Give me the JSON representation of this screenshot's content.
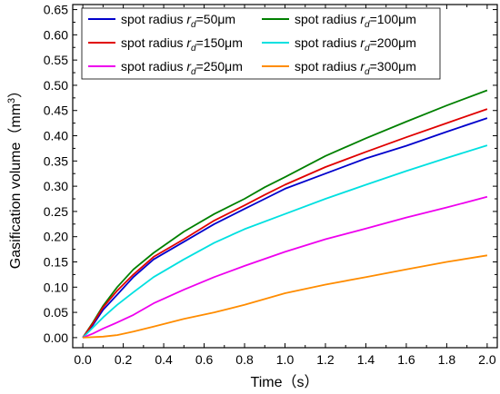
{
  "chart_data": {
    "type": "line",
    "xlabel": "Time（s）",
    "ylabel": "Gasification volume（mm",
    "ylabel_sup": "3",
    "ylabel_close": "）",
    "xlim": [
      -0.05,
      2.05
    ],
    "ylim": [
      -0.02,
      0.66
    ],
    "xticks": [
      "0.0",
      "0.2",
      "0.4",
      "0.6",
      "0.8",
      "1.0",
      "1.2",
      "1.4",
      "1.6",
      "1.8",
      "2.0"
    ],
    "yticks": [
      "0.00",
      "0.05",
      "0.10",
      "0.15",
      "0.20",
      "0.25",
      "0.30",
      "0.35",
      "0.40",
      "0.45",
      "0.50",
      "0.55",
      "0.60",
      "0.65"
    ],
    "legend_placement": "top-left",
    "series": [
      {
        "name": "spot radius ",
        "sym": "r",
        "sub": "d",
        "value_label": "=50μm",
        "color": "#0000cc",
        "points": [
          [
            0,
            0
          ],
          [
            0.05,
            0.025
          ],
          [
            0.1,
            0.055
          ],
          [
            0.17,
            0.085
          ],
          [
            0.25,
            0.12
          ],
          [
            0.35,
            0.155
          ],
          [
            0.5,
            0.19
          ],
          [
            0.65,
            0.225
          ],
          [
            0.8,
            0.255
          ],
          [
            0.9,
            0.275
          ],
          [
            1.0,
            0.295
          ],
          [
            1.2,
            0.325
          ],
          [
            1.4,
            0.355
          ],
          [
            1.6,
            0.38
          ],
          [
            1.8,
            0.408
          ],
          [
            2.0,
            0.435
          ]
        ]
      },
      {
        "name": "spot radius ",
        "sym": "r",
        "sub": "d",
        "value_label": "=100μm",
        "color": "#008000",
        "points": [
          [
            0,
            0
          ],
          [
            0.05,
            0.03
          ],
          [
            0.1,
            0.063
          ],
          [
            0.17,
            0.1
          ],
          [
            0.25,
            0.135
          ],
          [
            0.35,
            0.168
          ],
          [
            0.5,
            0.21
          ],
          [
            0.65,
            0.245
          ],
          [
            0.8,
            0.275
          ],
          [
            0.9,
            0.298
          ],
          [
            1.0,
            0.318
          ],
          [
            1.2,
            0.36
          ],
          [
            1.4,
            0.395
          ],
          [
            1.6,
            0.428
          ],
          [
            1.8,
            0.46
          ],
          [
            2.0,
            0.49
          ]
        ]
      },
      {
        "name": "spot radius ",
        "sym": "r",
        "sub": "d",
        "value_label": "=150μm",
        "color": "#e00000",
        "points": [
          [
            0,
            0
          ],
          [
            0.05,
            0.028
          ],
          [
            0.1,
            0.06
          ],
          [
            0.17,
            0.093
          ],
          [
            0.25,
            0.125
          ],
          [
            0.35,
            0.16
          ],
          [
            0.5,
            0.195
          ],
          [
            0.65,
            0.232
          ],
          [
            0.8,
            0.262
          ],
          [
            0.9,
            0.283
          ],
          [
            1.0,
            0.303
          ],
          [
            1.2,
            0.338
          ],
          [
            1.4,
            0.368
          ],
          [
            1.6,
            0.397
          ],
          [
            1.8,
            0.425
          ],
          [
            2.0,
            0.453
          ]
        ]
      },
      {
        "name": "spot radius ",
        "sym": "r",
        "sub": "d",
        "value_label": "=200μm",
        "color": "#00e0e0",
        "points": [
          [
            0,
            0
          ],
          [
            0.05,
            0.02
          ],
          [
            0.1,
            0.04
          ],
          [
            0.17,
            0.065
          ],
          [
            0.25,
            0.09
          ],
          [
            0.35,
            0.12
          ],
          [
            0.5,
            0.155
          ],
          [
            0.65,
            0.188
          ],
          [
            0.8,
            0.215
          ],
          [
            1.0,
            0.245
          ],
          [
            1.2,
            0.275
          ],
          [
            1.4,
            0.303
          ],
          [
            1.6,
            0.33
          ],
          [
            1.8,
            0.356
          ],
          [
            2.0,
            0.381
          ]
        ]
      },
      {
        "name": "spot radius ",
        "sym": "r",
        "sub": "d",
        "value_label": "=250μm",
        "color": "#ee00ee",
        "points": [
          [
            0,
            0
          ],
          [
            0.05,
            0.008
          ],
          [
            0.1,
            0.018
          ],
          [
            0.17,
            0.03
          ],
          [
            0.25,
            0.045
          ],
          [
            0.35,
            0.068
          ],
          [
            0.5,
            0.095
          ],
          [
            0.65,
            0.12
          ],
          [
            0.8,
            0.142
          ],
          [
            1.0,
            0.17
          ],
          [
            1.2,
            0.195
          ],
          [
            1.4,
            0.216
          ],
          [
            1.6,
            0.238
          ],
          [
            1.8,
            0.258
          ],
          [
            2.0,
            0.279
          ]
        ]
      },
      {
        "name": "spot radius ",
        "sym": "r",
        "sub": "d",
        "value_label": "=300μm",
        "color": "#ff8c00",
        "points": [
          [
            0,
            0
          ],
          [
            0.1,
            0.002
          ],
          [
            0.17,
            0.005
          ],
          [
            0.25,
            0.012
          ],
          [
            0.35,
            0.022
          ],
          [
            0.5,
            0.037
          ],
          [
            0.65,
            0.05
          ],
          [
            0.8,
            0.065
          ],
          [
            1.0,
            0.088
          ],
          [
            1.2,
            0.105
          ],
          [
            1.4,
            0.12
          ],
          [
            1.6,
            0.135
          ],
          [
            1.8,
            0.15
          ],
          [
            2.0,
            0.163
          ]
        ]
      }
    ]
  }
}
